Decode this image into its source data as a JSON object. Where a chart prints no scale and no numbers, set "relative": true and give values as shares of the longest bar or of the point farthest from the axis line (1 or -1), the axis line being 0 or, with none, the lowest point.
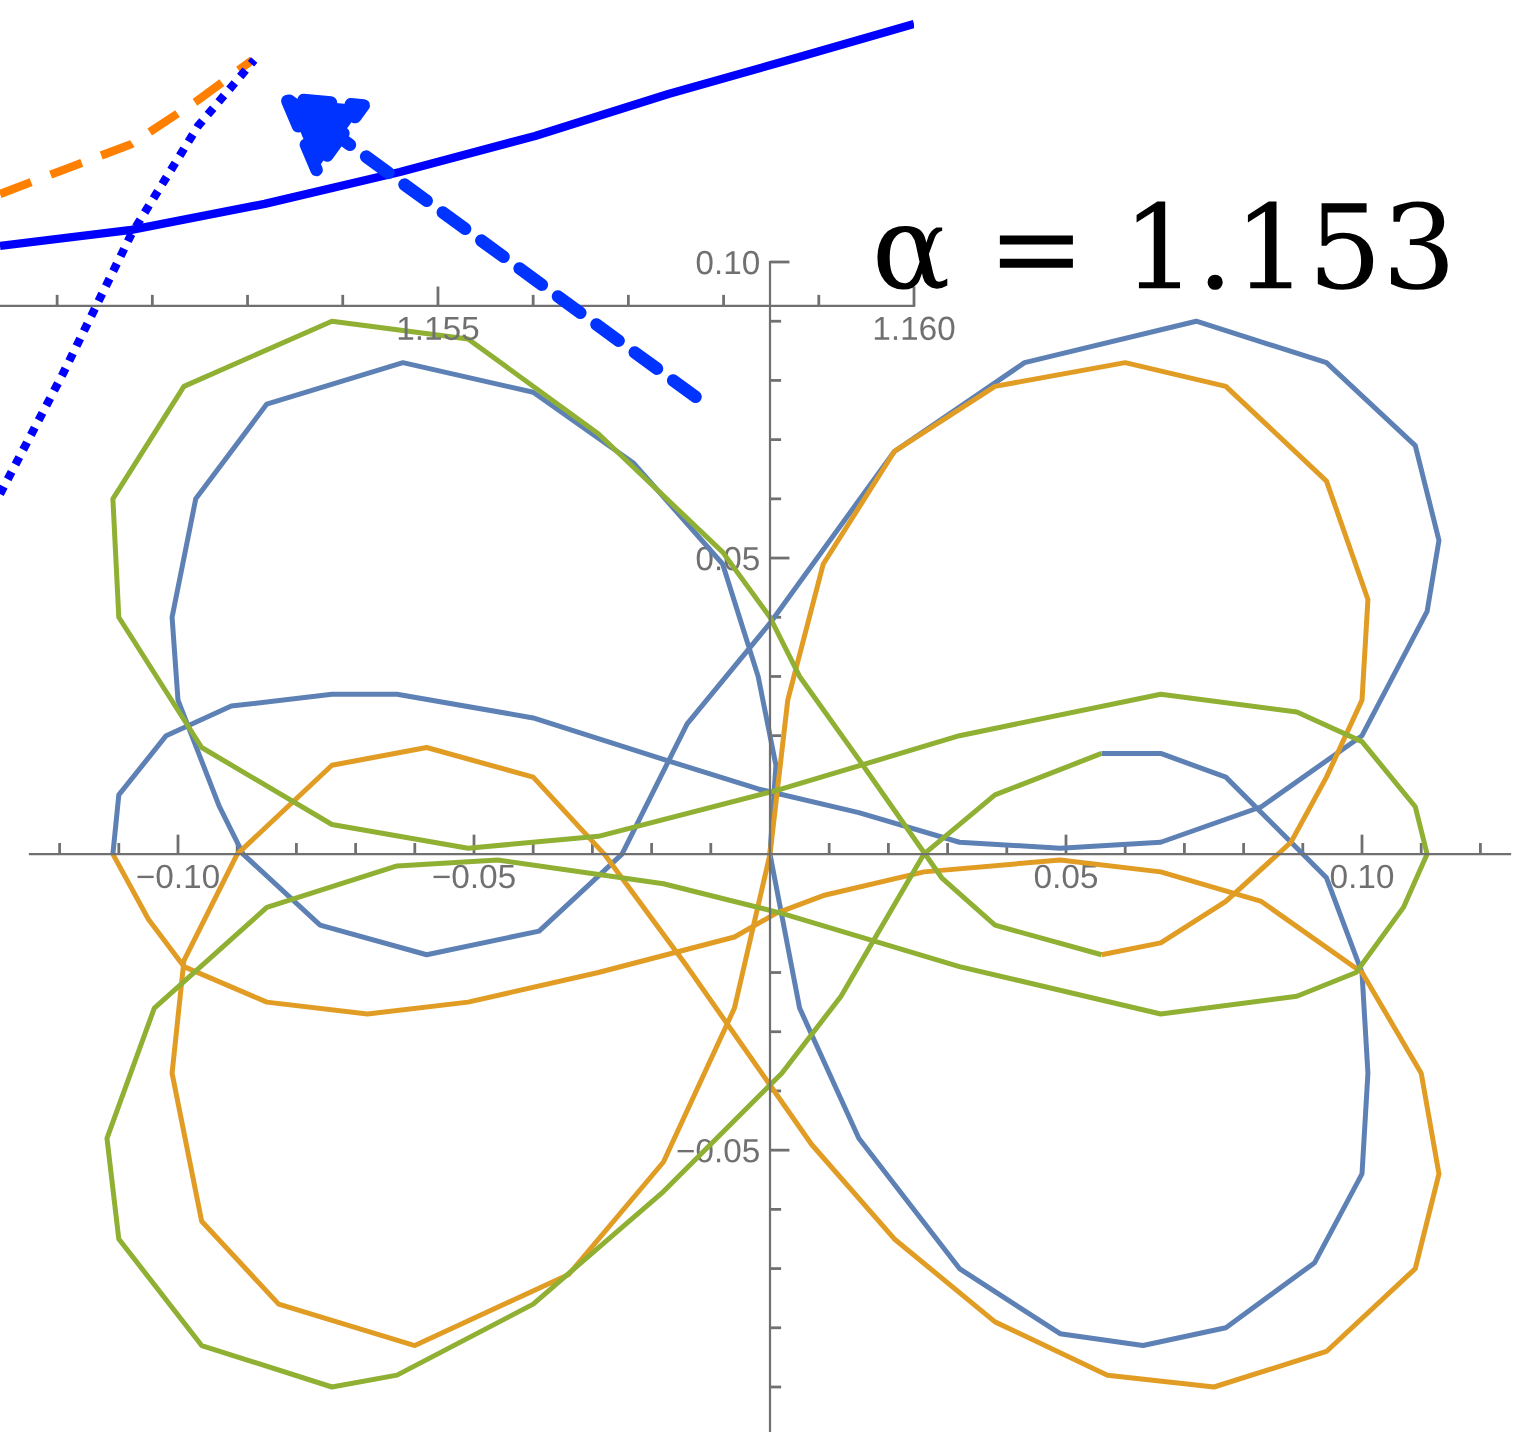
{
  "chart_data": [
    {
      "type": "line",
      "annotations": [
        "α = 1.153"
      ],
      "xlim": [
        -0.125,
        0.125
      ],
      "ylim": [
        -0.0976,
        0.1
      ],
      "xticks": [
        {
          "value": -0.12,
          "label": null
        },
        {
          "value": -0.11,
          "label": null
        },
        {
          "value": -0.1,
          "label": "−0.10"
        },
        {
          "value": -0.09,
          "label": null
        },
        {
          "value": -0.08,
          "label": null
        },
        {
          "value": -0.07,
          "label": null
        },
        {
          "value": -0.06,
          "label": null
        },
        {
          "value": -0.05,
          "label": "−0.05"
        },
        {
          "value": -0.04,
          "label": null
        },
        {
          "value": -0.03,
          "label": null
        },
        {
          "value": -0.02,
          "label": null
        },
        {
          "value": -0.01,
          "label": null
        },
        {
          "value": 0.01,
          "label": null
        },
        {
          "value": 0.02,
          "label": null
        },
        {
          "value": 0.03,
          "label": null
        },
        {
          "value": 0.04,
          "label": null
        },
        {
          "value": 0.05,
          "label": "0.05"
        },
        {
          "value": 0.06,
          "label": null
        },
        {
          "value": 0.07,
          "label": null
        },
        {
          "value": 0.08,
          "label": null
        },
        {
          "value": 0.09,
          "label": null
        },
        {
          "value": 0.1,
          "label": "0.10"
        },
        {
          "value": 0.11,
          "label": null
        },
        {
          "value": 0.12,
          "label": null
        }
      ],
      "yticks": [
        {
          "value": -0.09,
          "label": null
        },
        {
          "value": -0.08,
          "label": null
        },
        {
          "value": -0.07,
          "label": null
        },
        {
          "value": -0.06,
          "label": null
        },
        {
          "value": -0.05,
          "label": "−0.05"
        },
        {
          "value": -0.04,
          "label": null
        },
        {
          "value": -0.03,
          "label": null
        },
        {
          "value": -0.02,
          "label": null
        },
        {
          "value": -0.01,
          "label": null
        },
        {
          "value": 0.01,
          "label": null
        },
        {
          "value": 0.02,
          "label": null
        },
        {
          "value": 0.03,
          "label": null
        },
        {
          "value": 0.04,
          "label": null
        },
        {
          "value": 0.05,
          "label": "0.05"
        },
        {
          "value": 0.06,
          "label": null
        },
        {
          "value": 0.07,
          "label": null
        },
        {
          "value": 0.08,
          "label": null
        },
        {
          "value": 0.09,
          "label": null
        },
        {
          "value": 0.1,
          "label": "0.10"
        }
      ],
      "series": [
        {
          "color": "#5e81b5",
          "x": [
            0.056,
            0.066,
            0.077,
            0.09,
            0.094,
            0.1,
            0.101,
            0.1,
            0.092,
            0.077,
            0.063,
            0.049,
            0.032,
            0.015,
            0.005,
            0.0,
            0.001,
            -0.002,
            -0.008,
            -0.023,
            -0.04,
            -0.062,
            -0.085,
            -0.097,
            -0.101,
            -0.1,
            -0.093,
            -0.089,
            -0.076,
            -0.058,
            -0.039,
            -0.025,
            -0.014,
            0.0,
            0.021,
            0.043,
            0.072,
            0.094,
            0.109,
            0.113,
            0.111,
            0.1,
            0.083,
            0.066,
            0.049,
            0.032,
            0.015,
            -0.002,
            -0.018,
            -0.04,
            -0.063,
            -0.074,
            -0.091,
            -0.102,
            -0.11,
            -0.111
          ],
          "values": [
            0.017,
            0.017,
            0.013,
            0.0,
            -0.004,
            -0.02,
            -0.037,
            -0.054,
            -0.069,
            -0.08,
            -0.083,
            -0.081,
            -0.07,
            -0.048,
            -0.026,
            0.0,
            0.015,
            0.03,
            0.049,
            0.066,
            0.078,
            0.083,
            0.076,
            0.06,
            0.04,
            0.026,
            0.008,
            0.0,
            -0.012,
            -0.017,
            -0.013,
            0.0,
            0.022,
            0.039,
            0.068,
            0.083,
            0.09,
            0.083,
            0.069,
            0.053,
            0.041,
            0.02,
            0.008,
            0.002,
            0.001,
            0.002,
            0.007,
            0.011,
            0.016,
            0.023,
            0.027,
            0.027,
            0.025,
            0.02,
            0.01,
            0.0
          ]
        },
        {
          "color": "#e19c24",
          "x": [
            -0.111,
            -0.105,
            -0.099,
            -0.085,
            -0.068,
            -0.051,
            -0.029,
            -0.006,
            0.001,
            0.009,
            0.026,
            0.049,
            0.066,
            0.083,
            0.1,
            0.11,
            0.113,
            0.109,
            0.094,
            0.075,
            0.057,
            0.038,
            0.021,
            0.007,
            0.0,
            -0.014,
            -0.028,
            -0.04,
            -0.058,
            -0.074,
            -0.09,
            -0.099,
            -0.101,
            -0.096,
            -0.083,
            -0.06,
            -0.034,
            -0.018,
            -0.006,
            0.0,
            0.003,
            0.009,
            0.021,
            0.038,
            0.06,
            0.077,
            0.094,
            0.101,
            0.1,
            0.094,
            0.088,
            0.077,
            0.066,
            0.056
          ],
          "values": [
            0.0,
            -0.011,
            -0.019,
            -0.025,
            -0.027,
            -0.025,
            -0.02,
            -0.014,
            -0.01,
            -0.007,
            -0.003,
            -0.001,
            -0.003,
            -0.008,
            -0.02,
            -0.037,
            -0.054,
            -0.07,
            -0.084,
            -0.09,
            -0.088,
            -0.079,
            -0.065,
            -0.049,
            -0.039,
            -0.019,
            0.0,
            0.013,
            0.018,
            0.015,
            0.0,
            -0.018,
            -0.037,
            -0.062,
            -0.076,
            -0.083,
            -0.071,
            -0.052,
            -0.026,
            0.0,
            0.026,
            0.049,
            0.068,
            0.079,
            0.083,
            0.079,
            0.063,
            0.043,
            0.026,
            0.013,
            0.002,
            -0.008,
            -0.015,
            -0.017
          ]
        },
        {
          "color": "#8fb032",
          "x": [
            0.056,
            0.038,
            0.029,
            0.015,
            0.005,
            0.0,
            -0.008,
            -0.029,
            -0.051,
            -0.074,
            -0.099,
            -0.111,
            -0.11,
            -0.096,
            -0.074,
            -0.051,
            -0.029,
            0.002,
            0.032,
            0.066,
            0.089,
            0.1,
            0.109,
            0.111,
            0.107,
            0.099,
            0.089,
            0.066,
            0.032,
            0.002,
            -0.018,
            -0.046,
            -0.063,
            -0.085,
            -0.104,
            -0.112,
            -0.11,
            -0.096,
            -0.074,
            -0.063,
            -0.04,
            -0.018,
            0.002,
            0.012,
            0.026,
            0.038,
            0.056
          ],
          "values": [
            -0.017,
            -0.012,
            -0.004,
            0.016,
            0.03,
            0.04,
            0.051,
            0.071,
            0.087,
            0.09,
            0.079,
            0.06,
            0.04,
            0.018,
            0.005,
            0.001,
            0.003,
            0.011,
            0.02,
            0.027,
            0.024,
            0.019,
            0.008,
            0.0,
            -0.009,
            -0.02,
            -0.024,
            -0.027,
            -0.019,
            -0.01,
            -0.005,
            -0.001,
            -0.002,
            -0.009,
            -0.026,
            -0.048,
            -0.065,
            -0.083,
            -0.09,
            -0.088,
            -0.076,
            -0.057,
            -0.037,
            -0.024,
            0.0,
            0.01,
            0.017
          ]
        }
      ]
    },
    {
      "type": "line",
      "relative": true,
      "tick_labels": "x",
      "xlim": [
        1.1504,
        1.16
      ],
      "xticks": [
        {
          "value": 1.151,
          "label": null
        },
        {
          "value": 1.152,
          "label": null
        },
        {
          "value": 1.153,
          "label": null
        },
        {
          "value": 1.154,
          "label": null
        },
        1.155,
        {
          "value": 1.156,
          "label": null
        },
        {
          "value": 1.157,
          "label": null
        },
        {
          "value": 1.158,
          "label": null
        },
        {
          "value": 1.159,
          "label": null
        },
        {
          "value": 1.16,
          "label": "1.160"
        }
      ],
      "series": [
        {
          "color": "#0000ff",
          "line_style": "solid",
          "x": [
            1.1504,
            1.15178,
            1.15318,
            1.1546,
            1.15602,
            1.15742,
            1.15884,
            1.16
          ],
          "values": [
            0.213,
            0.27,
            0.362,
            0.475,
            0.603,
            0.752,
            0.887,
            1.0
          ]
        },
        {
          "color": "#ff8000",
          "line_style": "dashed",
          "x": [
            1.1504,
            1.15106,
            1.15178,
            1.15248,
            1.15305
          ],
          "values": [
            0.397,
            0.482,
            0.574,
            0.73,
            0.872
          ]
        },
        {
          "color": "#0000ff",
          "line_style": "dotted",
          "x": [
            1.1504,
            1.15106,
            1.15178,
            1.15248,
            1.15307
          ],
          "values": [
            -0.667,
            -0.241,
            0.255,
            0.638,
            0.872
          ]
        }
      ]
    }
  ]
}
